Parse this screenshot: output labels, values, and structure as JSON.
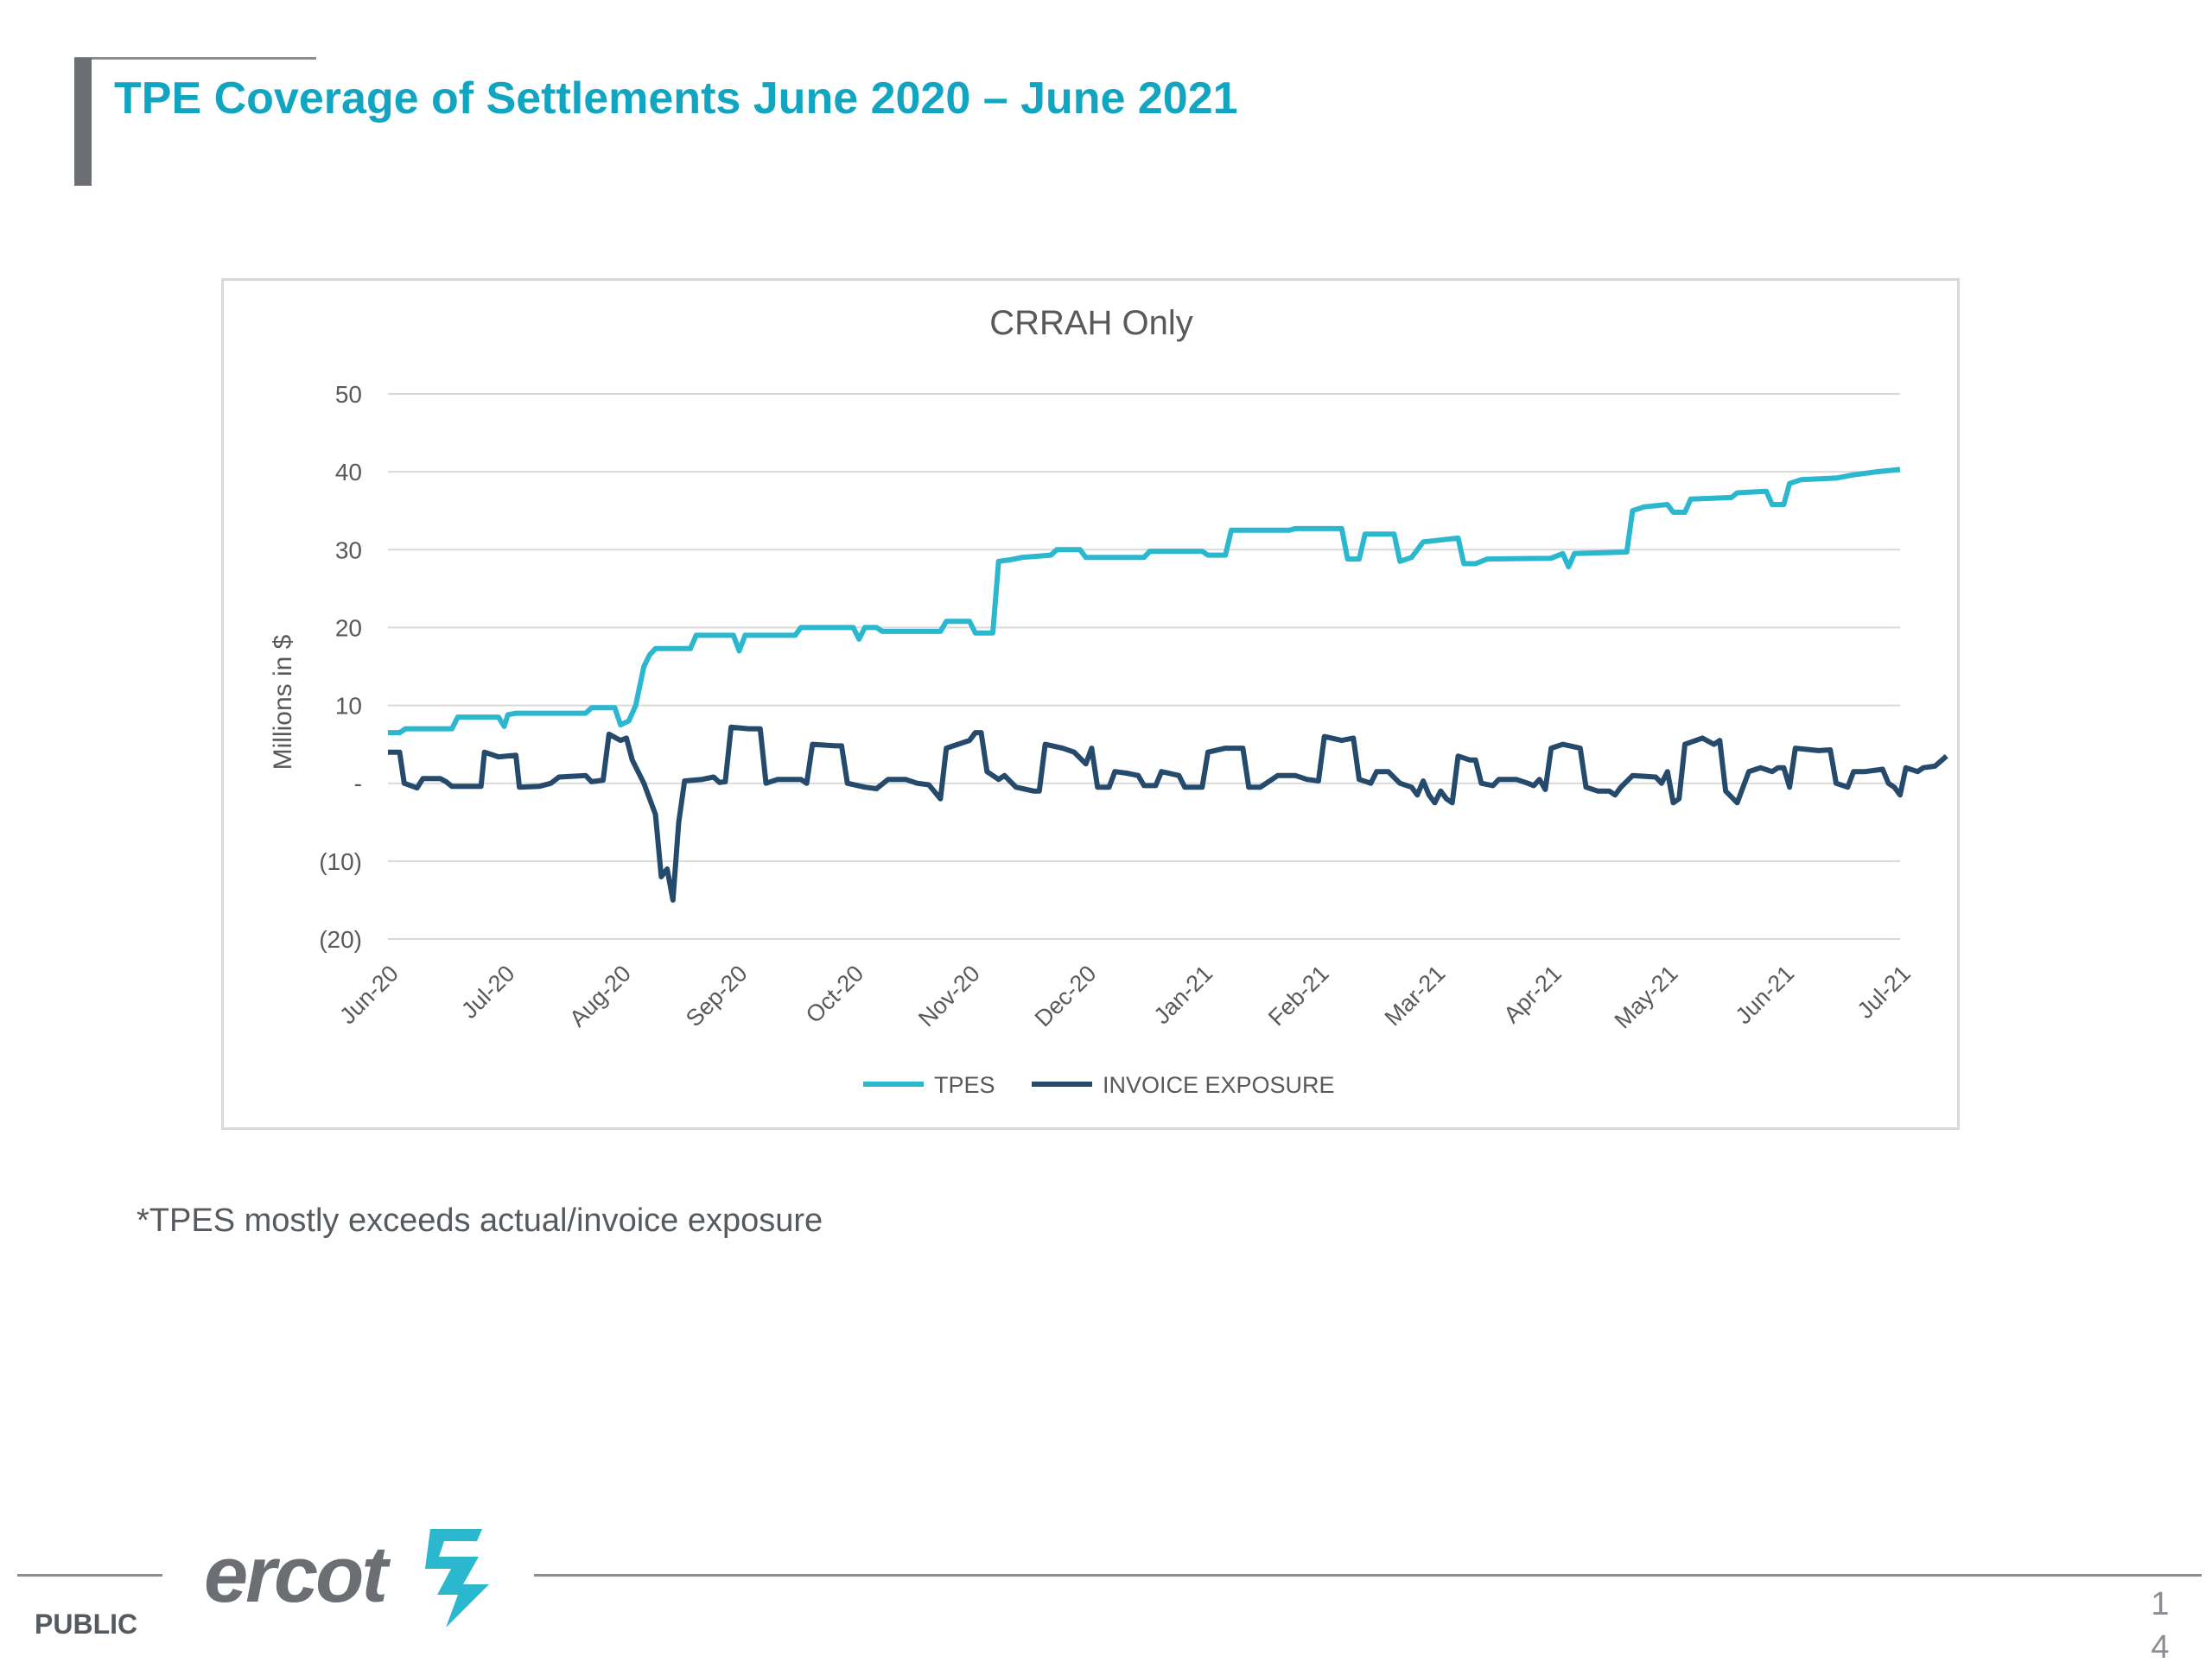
{
  "slide": {
    "title": "TPE Coverage of Settlements June 2020 – June 2021",
    "note": "*TPES mostly exceeds actual/invoice exposure",
    "footer_label": "PUBLIC",
    "page_number_line1": "1",
    "page_number_line2": "4",
    "logo_text": "ercot"
  },
  "colors": {
    "title": "#12a5c1",
    "tpes": "#2bb8cf",
    "invoice": "#264a6b",
    "grid": "#d9d9d9",
    "axis_text": "#595959"
  },
  "chart_data": {
    "type": "line",
    "title": "CRRAH Only",
    "ylabel": "Millions in $",
    "xlabel": "",
    "ylim": [
      -20,
      50
    ],
    "yticks": [
      {
        "value": 50,
        "label": "50"
      },
      {
        "value": 40,
        "label": "40"
      },
      {
        "value": 30,
        "label": "30"
      },
      {
        "value": 20,
        "label": "20"
      },
      {
        "value": 10,
        "label": "10"
      },
      {
        "value": 0,
        "label": "-"
      },
      {
        "value": -10,
        "label": "(10)"
      },
      {
        "value": -20,
        "label": "(20)"
      }
    ],
    "x_tick_labels": [
      "Jun-20",
      "Jul-20",
      "Aug-20",
      "Sep-20",
      "Oct-20",
      "Nov-20",
      "Dec-20",
      "Jan-21",
      "Feb-21",
      "Mar-21",
      "Apr-21",
      "May-21",
      "Jun-21",
      "Jul-21"
    ],
    "legend_position": "bottom",
    "grid": true,
    "series": [
      {
        "name": "TPES",
        "color": "#2bb8cf",
        "points": [
          [
            0,
            6.5
          ],
          [
            0.1,
            6.5
          ],
          [
            0.15,
            7
          ],
          [
            0.55,
            7
          ],
          [
            0.6,
            8.5
          ],
          [
            0.95,
            8.5
          ],
          [
            1.0,
            7.3
          ],
          [
            1.03,
            8.8
          ],
          [
            1.1,
            9
          ],
          [
            1.4,
            9
          ],
          [
            1.7,
            9
          ],
          [
            1.75,
            9.7
          ],
          [
            1.95,
            9.7
          ],
          [
            2.0,
            7.5
          ],
          [
            2.07,
            8
          ],
          [
            2.13,
            10
          ],
          [
            2.2,
            15
          ],
          [
            2.25,
            16.5
          ],
          [
            2.3,
            17.3
          ],
          [
            2.6,
            17.3
          ],
          [
            2.65,
            19
          ],
          [
            2.97,
            19
          ],
          [
            3.02,
            17
          ],
          [
            3.07,
            19
          ],
          [
            3.5,
            19
          ],
          [
            3.55,
            20
          ],
          [
            4.0,
            20
          ],
          [
            4.05,
            18.5
          ],
          [
            4.1,
            20
          ],
          [
            4.2,
            20
          ],
          [
            4.25,
            19.5
          ],
          [
            4.6,
            19.5
          ],
          [
            4.75,
            19.5
          ],
          [
            4.8,
            20.8
          ],
          [
            5.0,
            20.8
          ],
          [
            5.05,
            19.3
          ],
          [
            5.2,
            19.3
          ],
          [
            5.25,
            28.5
          ],
          [
            5.35,
            28.7
          ],
          [
            5.45,
            29
          ],
          [
            5.7,
            29.3
          ],
          [
            5.75,
            30
          ],
          [
            5.95,
            30
          ],
          [
            6.0,
            29
          ],
          [
            6.5,
            29
          ],
          [
            6.55,
            29.8
          ],
          [
            7.0,
            29.8
          ],
          [
            7.05,
            29.3
          ],
          [
            7.2,
            29.3
          ],
          [
            7.25,
            32.5
          ],
          [
            7.75,
            32.5
          ],
          [
            7.8,
            32.7
          ],
          [
            8.2,
            32.7
          ],
          [
            8.25,
            28.8
          ],
          [
            8.35,
            28.8
          ],
          [
            8.4,
            32
          ],
          [
            8.65,
            32
          ],
          [
            8.7,
            28.5
          ],
          [
            8.8,
            29
          ],
          [
            8.9,
            31
          ],
          [
            9.2,
            31.5
          ],
          [
            9.25,
            28.2
          ],
          [
            9.35,
            28.2
          ],
          [
            9.45,
            28.8
          ],
          [
            10.0,
            28.9
          ],
          [
            10.1,
            29.5
          ],
          [
            10.15,
            27.8
          ],
          [
            10.2,
            29.5
          ],
          [
            10.65,
            29.7
          ],
          [
            10.7,
            35
          ],
          [
            10.8,
            35.5
          ],
          [
            11.0,
            35.8
          ],
          [
            11.05,
            34.8
          ],
          [
            11.15,
            34.8
          ],
          [
            11.2,
            36.5
          ],
          [
            11.55,
            36.7
          ],
          [
            11.6,
            37.3
          ],
          [
            11.85,
            37.5
          ],
          [
            11.9,
            35.8
          ],
          [
            12.0,
            35.8
          ],
          [
            12.05,
            38.5
          ],
          [
            12.15,
            39
          ],
          [
            12.45,
            39.2
          ],
          [
            12.6,
            39.6
          ],
          [
            12.8,
            40
          ],
          [
            13.0,
            40.3
          ]
        ]
      },
      {
        "name": "INVOICE EXPOSURE",
        "color": "#264a6b",
        "points": [
          [
            0,
            4
          ],
          [
            0.1,
            4
          ],
          [
            0.14,
            0
          ],
          [
            0.25,
            -0.6
          ],
          [
            0.3,
            0.6
          ],
          [
            0.45,
            0.6
          ],
          [
            0.5,
            0.2
          ],
          [
            0.55,
            -0.4
          ],
          [
            0.8,
            -0.4
          ],
          [
            0.83,
            4
          ],
          [
            0.95,
            3.4
          ],
          [
            1.1,
            3.6
          ],
          [
            1.13,
            -0.5
          ],
          [
            1.3,
            -0.4
          ],
          [
            1.4,
            0
          ],
          [
            1.47,
            0.8
          ],
          [
            1.7,
            1
          ],
          [
            1.75,
            0.2
          ],
          [
            1.85,
            0.4
          ],
          [
            1.9,
            6.3
          ],
          [
            2.0,
            5.5
          ],
          [
            2.05,
            5.8
          ],
          [
            2.1,
            3
          ],
          [
            2.2,
            0
          ],
          [
            2.3,
            -4
          ],
          [
            2.35,
            -12
          ],
          [
            2.4,
            -11
          ],
          [
            2.45,
            -15
          ],
          [
            2.5,
            -5
          ],
          [
            2.55,
            0.3
          ],
          [
            2.7,
            0.5
          ],
          [
            2.8,
            0.8
          ],
          [
            2.85,
            0.1
          ],
          [
            2.9,
            0.2
          ],
          [
            2.95,
            7.2
          ],
          [
            3.1,
            7
          ],
          [
            3.2,
            7
          ],
          [
            3.25,
            0
          ],
          [
            3.35,
            0.5
          ],
          [
            3.55,
            0.5
          ],
          [
            3.6,
            0
          ],
          [
            3.65,
            5
          ],
          [
            3.85,
            4.8
          ],
          [
            3.9,
            4.8
          ],
          [
            3.95,
            0
          ],
          [
            4.1,
            -0.5
          ],
          [
            4.2,
            -0.7
          ],
          [
            4.3,
            0.5
          ],
          [
            4.45,
            0.5
          ],
          [
            4.55,
            0
          ],
          [
            4.65,
            -0.2
          ],
          [
            4.75,
            -2
          ],
          [
            4.8,
            4.5
          ],
          [
            4.9,
            5
          ],
          [
            5.0,
            5.5
          ],
          [
            5.05,
            6.5
          ],
          [
            5.1,
            6.5
          ],
          [
            5.15,
            1.5
          ],
          [
            5.25,
            0.5
          ],
          [
            5.3,
            1
          ],
          [
            5.4,
            -0.5
          ],
          [
            5.55,
            -1
          ],
          [
            5.6,
            -1
          ],
          [
            5.65,
            5
          ],
          [
            5.8,
            4.5
          ],
          [
            5.9,
            4
          ],
          [
            6.0,
            2.5
          ],
          [
            6.05,
            4.5
          ],
          [
            6.1,
            -0.5
          ],
          [
            6.2,
            -0.5
          ],
          [
            6.25,
            1.5
          ],
          [
            6.35,
            1.3
          ],
          [
            6.45,
            1
          ],
          [
            6.5,
            -0.3
          ],
          [
            6.6,
            -0.3
          ],
          [
            6.65,
            1.5
          ],
          [
            6.8,
            1
          ],
          [
            6.85,
            -0.5
          ],
          [
            7.0,
            -0.5
          ],
          [
            7.05,
            4
          ],
          [
            7.2,
            4.5
          ],
          [
            7.35,
            4.5
          ],
          [
            7.4,
            -0.5
          ],
          [
            7.5,
            -0.5
          ],
          [
            7.6,
            0.5
          ],
          [
            7.65,
            1
          ],
          [
            7.8,
            1
          ],
          [
            7.9,
            0.5
          ],
          [
            8.0,
            0.3
          ],
          [
            8.05,
            6
          ],
          [
            8.2,
            5.5
          ],
          [
            8.3,
            5.8
          ],
          [
            8.35,
            0.5
          ],
          [
            8.45,
            0
          ],
          [
            8.5,
            1.5
          ],
          [
            8.6,
            1.5
          ],
          [
            8.7,
            0
          ],
          [
            8.8,
            -0.5
          ],
          [
            8.85,
            -1.5
          ],
          [
            8.9,
            0.3
          ],
          [
            8.95,
            -1.5
          ],
          [
            9.0,
            -2.5
          ],
          [
            9.05,
            -1
          ],
          [
            9.1,
            -2
          ],
          [
            9.15,
            -2.5
          ],
          [
            9.2,
            3.5
          ],
          [
            9.3,
            3
          ],
          [
            9.35,
            3
          ],
          [
            9.4,
            0
          ],
          [
            9.5,
            -0.3
          ],
          [
            9.55,
            0.5
          ],
          [
            9.7,
            0.5
          ],
          [
            9.8,
            0
          ],
          [
            9.85,
            -0.3
          ],
          [
            9.9,
            0.5
          ],
          [
            9.95,
            -0.8
          ],
          [
            10.0,
            4.5
          ],
          [
            10.1,
            5
          ],
          [
            10.25,
            4.5
          ],
          [
            10.3,
            -0.5
          ],
          [
            10.4,
            -1
          ],
          [
            10.5,
            -1
          ],
          [
            10.55,
            -1.5
          ],
          [
            10.6,
            -0.5
          ],
          [
            10.7,
            1
          ],
          [
            10.9,
            0.8
          ],
          [
            10.95,
            0
          ],
          [
            11.0,
            1.5
          ],
          [
            11.05,
            -2.5
          ],
          [
            11.1,
            -2
          ],
          [
            11.15,
            5
          ],
          [
            11.3,
            5.8
          ],
          [
            11.4,
            5
          ],
          [
            11.45,
            5.5
          ],
          [
            11.5,
            -1
          ],
          [
            11.6,
            -2.5
          ],
          [
            11.7,
            1.5
          ],
          [
            11.8,
            2
          ],
          [
            11.9,
            1.5
          ],
          [
            11.95,
            2
          ],
          [
            12.0,
            2
          ],
          [
            12.05,
            -0.5
          ],
          [
            12.1,
            4.5
          ],
          [
            12.3,
            4.2
          ],
          [
            12.4,
            4.3
          ],
          [
            12.45,
            0
          ],
          [
            12.55,
            -0.5
          ],
          [
            12.6,
            1.5
          ],
          [
            12.7,
            1.5
          ],
          [
            12.85,
            1.8
          ],
          [
            12.9,
            0
          ],
          [
            12.95,
            -0.5
          ],
          [
            13.0,
            -1.5
          ],
          [
            13.05,
            2
          ],
          [
            13.15,
            1.5
          ],
          [
            13.2,
            2
          ],
          [
            13.3,
            2.2
          ],
          [
            13.4,
            3.5
          ]
        ]
      }
    ]
  }
}
